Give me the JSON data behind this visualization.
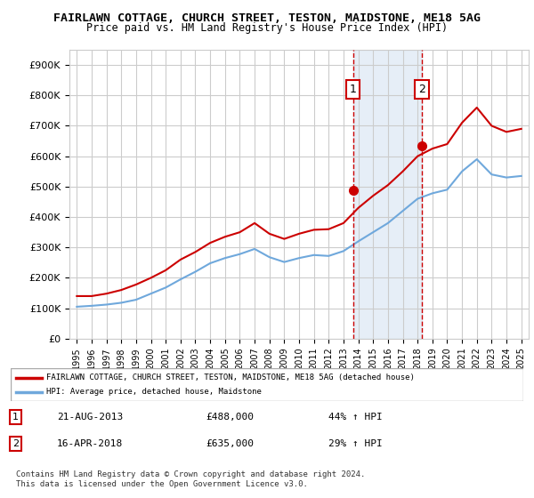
{
  "title1": "FAIRLAWN COTTAGE, CHURCH STREET, TESTON, MAIDSTONE, ME18 5AG",
  "title2": "Price paid vs. HM Land Registry's House Price Index (HPI)",
  "legend_label1": "FAIRLAWN COTTAGE, CHURCH STREET, TESTON, MAIDSTONE, ME18 5AG (detached house)",
  "legend_label2": "HPI: Average price, detached house, Maidstone",
  "footnote": "Contains HM Land Registry data © Crown copyright and database right 2024.\nThis data is licensed under the Open Government Licence v3.0.",
  "sale1_label": "1",
  "sale1_date": "21-AUG-2013",
  "sale1_price": "£488,000",
  "sale1_hpi": "44% ↑ HPI",
  "sale2_label": "2",
  "sale2_date": "16-APR-2018",
  "sale2_price": "£635,000",
  "sale2_hpi": "29% ↑ HPI",
  "sale1_x": 2013.64,
  "sale1_y": 488000,
  "sale2_x": 2018.29,
  "sale2_y": 635000,
  "ylim": [
    0,
    950000
  ],
  "xlim_left": 1994.5,
  "xlim_right": 2025.5,
  "hpi_color": "#6fa8dc",
  "price_color": "#cc0000",
  "sale_marker_color": "#cc0000",
  "shade_color": "#dce8f5",
  "grid_color": "#cccccc",
  "background_color": "#ffffff",
  "years": [
    1995,
    1996,
    1997,
    1998,
    1999,
    2000,
    2001,
    2002,
    2003,
    2004,
    2005,
    2006,
    2007,
    2008,
    2009,
    2010,
    2011,
    2012,
    2013,
    2014,
    2015,
    2016,
    2017,
    2018,
    2019,
    2020,
    2021,
    2022,
    2023,
    2024,
    2025
  ],
  "hpi_values": [
    105000,
    108000,
    112000,
    118000,
    128000,
    148000,
    168000,
    195000,
    220000,
    248000,
    265000,
    278000,
    295000,
    268000,
    252000,
    265000,
    275000,
    272000,
    288000,
    320000,
    350000,
    380000,
    420000,
    460000,
    478000,
    490000,
    550000,
    590000,
    540000,
    530000,
    535000
  ],
  "price_values": [
    140000,
    140000,
    148000,
    160000,
    178000,
    200000,
    225000,
    260000,
    285000,
    315000,
    335000,
    350000,
    380000,
    345000,
    328000,
    345000,
    358000,
    360000,
    380000,
    430000,
    470000,
    505000,
    550000,
    600000,
    625000,
    640000,
    710000,
    760000,
    700000,
    680000,
    690000
  ]
}
